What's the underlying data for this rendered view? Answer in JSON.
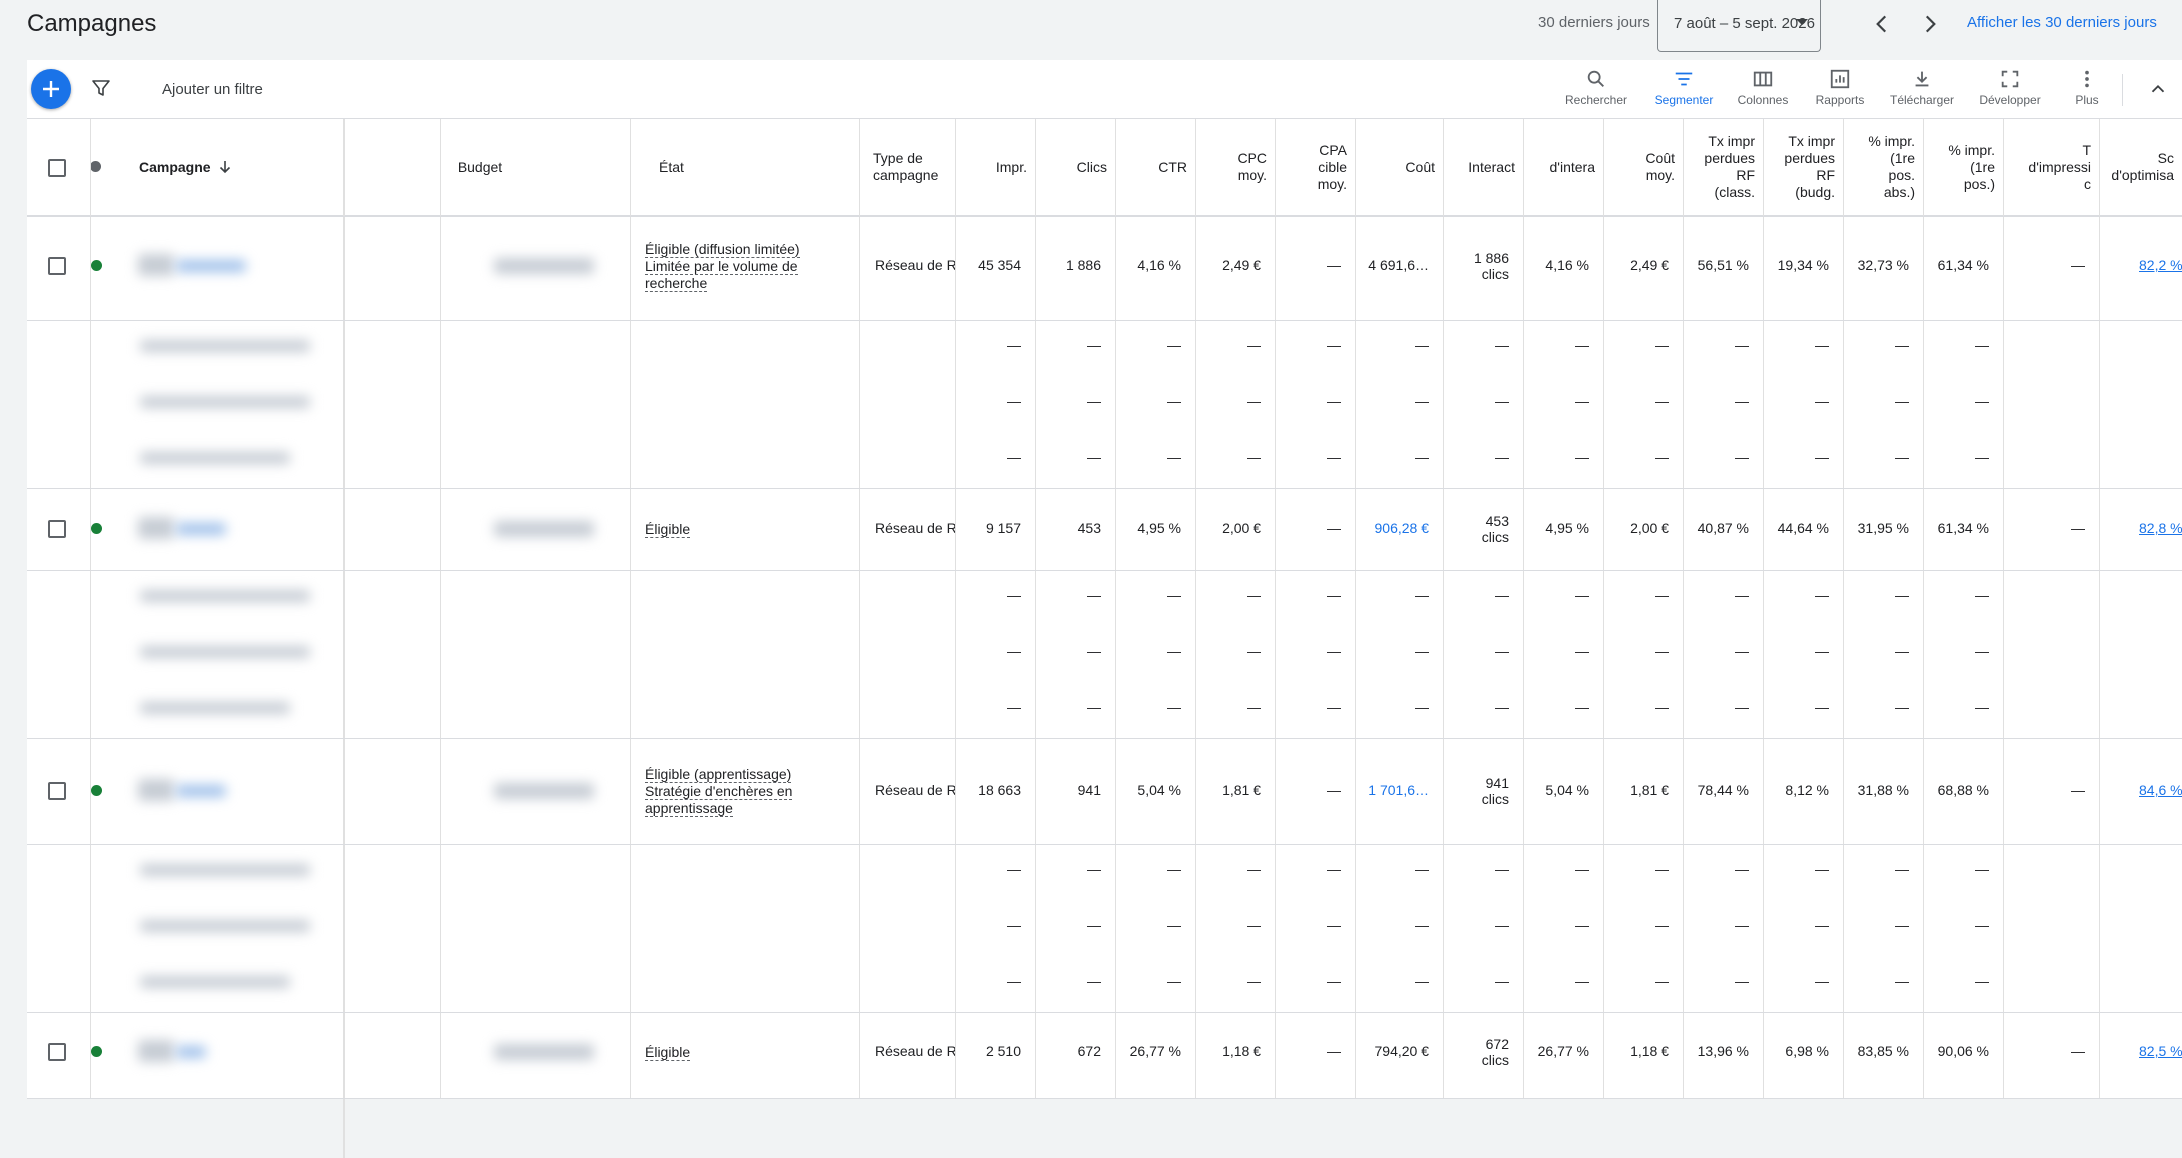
{
  "header": {
    "title": "Campagnes",
    "range_label": "30 derniers jours",
    "date_range": "7 août – 5 sept. 2026",
    "show_link": "Afficher les 30 derniers jours"
  },
  "toolbar": {
    "add_filter": "Ajouter un filtre",
    "tools": [
      {
        "label": "Rechercher",
        "icon": "search-icon"
      },
      {
        "label": "Segmenter",
        "icon": "segment-icon"
      },
      {
        "label": "Colonnes",
        "icon": "columns-icon"
      },
      {
        "label": "Rapports",
        "icon": "reports-icon"
      },
      {
        "label": "Télécharger",
        "icon": "download-icon"
      },
      {
        "label": "Développer",
        "icon": "expand-icon"
      },
      {
        "label": "Plus",
        "icon": "more-vert-icon"
      }
    ]
  },
  "columns": {
    "campaign": "Campagne",
    "budget": "Budget",
    "status": "État",
    "type": "Type de\ncampagne",
    "impr": "Impr.",
    "clicks": "Clics",
    "ctr": "CTR",
    "cpc": "CPC\nmoy.",
    "cpa": "CPA\ncible\nmoy.",
    "cost": "Coût",
    "interactions": "Interact",
    "interaction_rate": "d'intera",
    "avg_cost": "Coût\nmoy.",
    "lost_rank": "Tx impr\nperdues\nRF\n(class.",
    "lost_budget": "Tx impr\nperdues\nRF\n(budg.",
    "abs_top": "% impr.\n(1re\npos.\nabs.)",
    "top": "% impr.\n(1re\npos.)",
    "imp_share": "T\nd'impressi\nc",
    "opt_score": "Sc\nd'optimisa"
  },
  "rows": [
    {
      "status": [
        "Éligible (diffusion limitée)",
        "Limitée par le volume de",
        "recherche"
      ],
      "type": "Réseau de Re",
      "impr": "45 354",
      "clicks": "1 886",
      "ctr": "4,16 %",
      "cpc": "2,49 €",
      "cpa": "—",
      "cost": "4 691,6…",
      "interactions": "1 886\nclics",
      "rate": "4,16 %",
      "avg_cost": "2,49 €",
      "lost_rank": "56,51 %",
      "lost_budget": "19,34 %",
      "abs_top": "32,73 %",
      "top": "61,34 %",
      "imp_share": "—",
      "opt": "82,2 %",
      "cost_link": false
    },
    {
      "status": [
        "Éligible"
      ],
      "type": "Réseau de Re",
      "impr": "9 157",
      "clicks": "453",
      "ctr": "4,95 %",
      "cpc": "2,00 €",
      "cpa": "—",
      "cost": "906,28 €",
      "interactions": "453\nclics",
      "rate": "4,95 %",
      "avg_cost": "2,00 €",
      "lost_rank": "40,87 %",
      "lost_budget": "44,64 %",
      "abs_top": "31,95 %",
      "top": "61,34 %",
      "imp_share": "—",
      "opt": "82,8 %",
      "cost_link": true
    },
    {
      "status": [
        "Éligible (apprentissage)",
        "Stratégie d'enchères en",
        "apprentissage"
      ],
      "type": "Réseau de Re",
      "impr": "18 663",
      "clicks": "941",
      "ctr": "5,04 %",
      "cpc": "1,81 €",
      "cpa": "—",
      "cost": "1 701,6…",
      "interactions": "941\nclics",
      "rate": "5,04 %",
      "avg_cost": "1,81 €",
      "lost_rank": "78,44 %",
      "lost_budget": "8,12 %",
      "abs_top": "31,88 %",
      "top": "68,88 %",
      "imp_share": "—",
      "opt": "84,6 %",
      "cost_link": true
    },
    {
      "status": [
        "Éligible"
      ],
      "type": "Réseau de Re",
      "impr": "2 510",
      "clicks": "672",
      "ctr": "26,77 %",
      "cpc": "1,18 €",
      "cpa": "—",
      "cost": "794,20 €",
      "interactions": "672\nclics",
      "rate": "26,77 %",
      "avg_cost": "1,18 €",
      "lost_rank": "13,96 %",
      "lost_budget": "6,98 %",
      "abs_top": "83,85 %",
      "top": "90,06 %",
      "imp_share": "—",
      "opt": "82,5 %",
      "cost_link": false
    }
  ],
  "dash": "—",
  "colors": {
    "accent": "#1a73e8",
    "enabled_dot": "#188038",
    "header_dot": "#5f6368"
  }
}
